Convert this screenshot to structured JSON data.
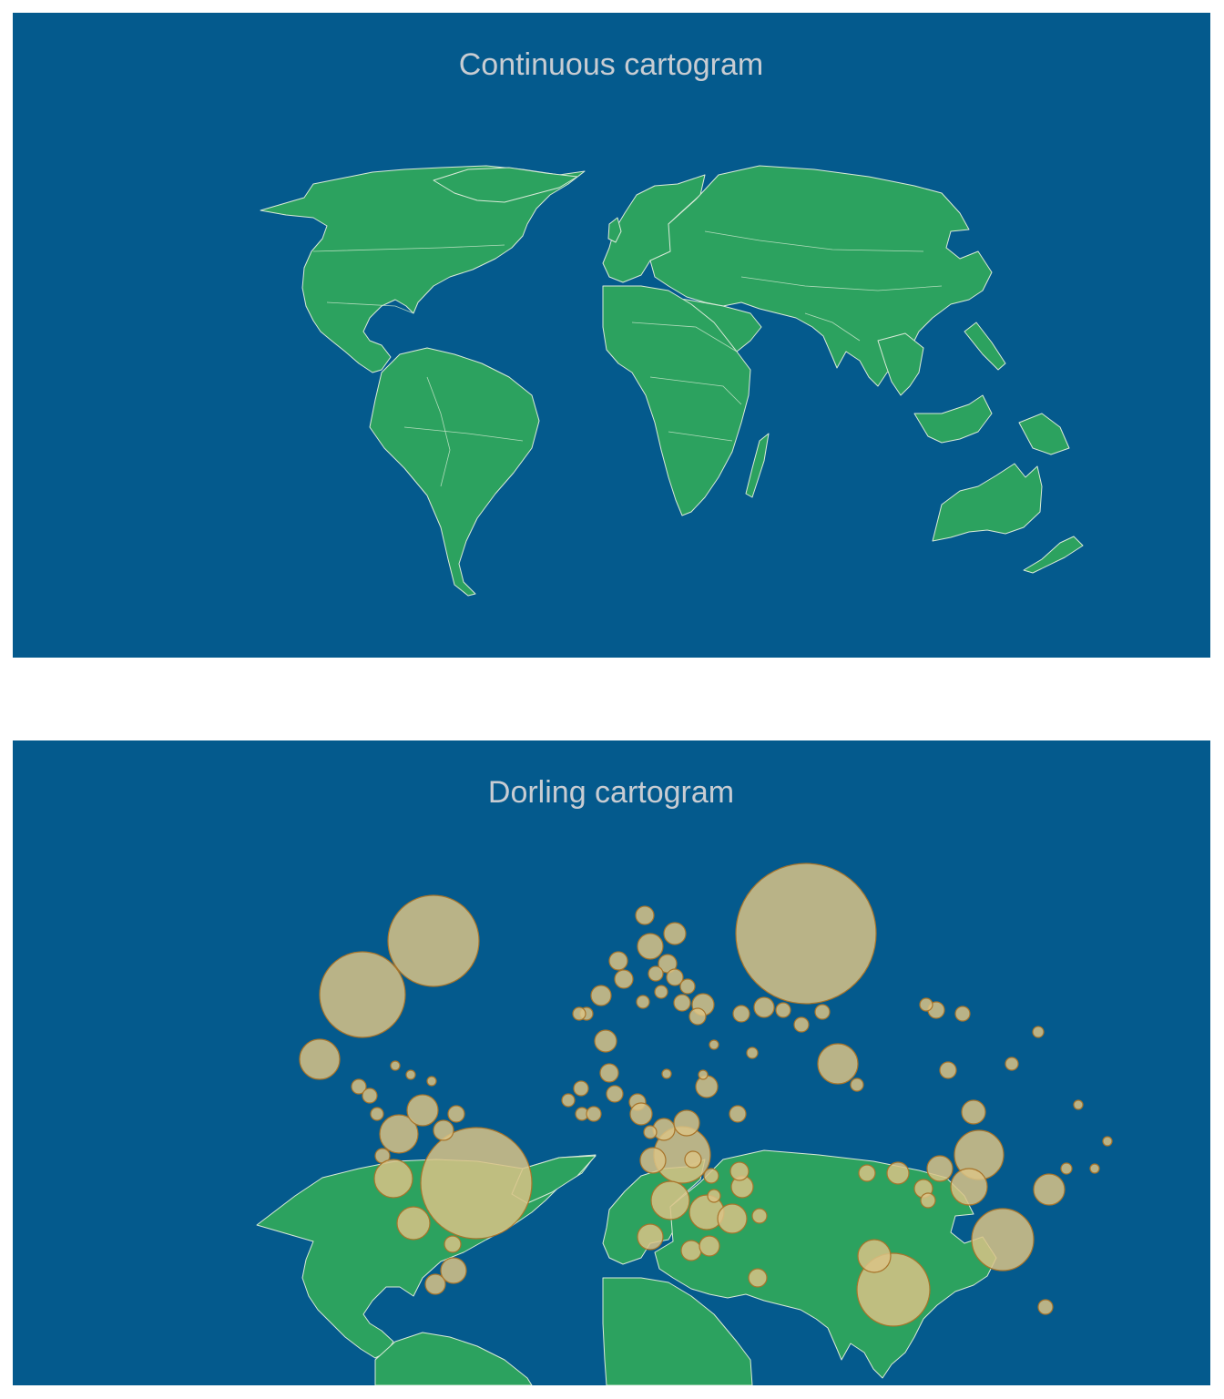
{
  "colors": {
    "ocean": "#045a8d",
    "land": "#2ca25f",
    "border": "#c9e6cb",
    "bubble_fill": "#d9c386",
    "bubble_stroke": "#a8742a",
    "title": "#c8ccd2"
  },
  "maps": [
    {
      "id": "continuous",
      "title": "Continuous cartogram",
      "type": "continuous-cartogram"
    },
    {
      "id": "dorling",
      "title": "Dorling cartogram",
      "type": "dorling-cartogram"
    }
  ]
}
